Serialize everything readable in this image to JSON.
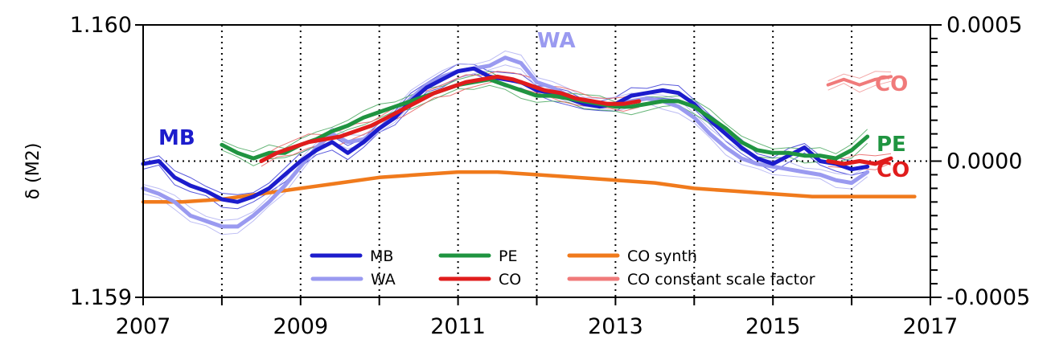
{
  "chart_data": {
    "type": "line",
    "ylabel": "δ (M2)",
    "xlim": [
      2007,
      2017
    ],
    "ylim": [
      1.159,
      1.16
    ],
    "y2lim": [
      -0.0005,
      0.0005
    ],
    "x_ticks": [
      "2007",
      "2009",
      "2011",
      "2013",
      "2015",
      "2017"
    ],
    "y_ticks": [
      "1.160",
      "1.159"
    ],
    "y2_ticks": [
      "0.0005",
      "0.0000",
      "-0.0005"
    ],
    "grid": "dotted vertical lines at each year, dotted horizontal line at 0.0000",
    "legend_position": "bottom-center",
    "legend": [
      "MB",
      "WA",
      "PE",
      "CO",
      "CO synth",
      "CO constant scale factor"
    ],
    "series": [
      {
        "name": "MB",
        "color": "#1c1ccc",
        "axis": "left",
        "points": [
          [
            2007.0,
            1.15949
          ],
          [
            2007.2,
            1.1595
          ],
          [
            2007.4,
            1.15944
          ],
          [
            2007.6,
            1.15941
          ],
          [
            2007.8,
            1.15939
          ],
          [
            2008.0,
            1.15936
          ],
          [
            2008.2,
            1.15935
          ],
          [
            2008.4,
            1.15937
          ],
          [
            2008.6,
            1.1594
          ],
          [
            2008.8,
            1.15945
          ],
          [
            2009.0,
            1.1595
          ],
          [
            2009.2,
            1.15954
          ],
          [
            2009.4,
            1.15957
          ],
          [
            2009.6,
            1.15953
          ],
          [
            2009.8,
            1.15957
          ],
          [
            2010.0,
            1.15962
          ],
          [
            2010.2,
            1.15966
          ],
          [
            2010.4,
            1.15972
          ],
          [
            2010.6,
            1.15977
          ],
          [
            2010.8,
            1.1598
          ],
          [
            2011.0,
            1.15983
          ],
          [
            2011.2,
            1.15984
          ],
          [
            2011.4,
            1.15981
          ],
          [
            2011.6,
            1.1598
          ],
          [
            2011.8,
            1.15979
          ],
          [
            2012.0,
            1.15976
          ],
          [
            2012.2,
            1.15975
          ],
          [
            2012.4,
            1.15973
          ],
          [
            2012.6,
            1.15971
          ],
          [
            2012.8,
            1.1597
          ],
          [
            2013.0,
            1.15971
          ],
          [
            2013.2,
            1.15974
          ],
          [
            2013.4,
            1.15975
          ],
          [
            2013.6,
            1.15976
          ],
          [
            2013.8,
            1.15975
          ],
          [
            2014.0,
            1.15971
          ],
          [
            2014.2,
            1.15965
          ],
          [
            2014.4,
            1.1596
          ],
          [
            2014.6,
            1.15955
          ],
          [
            2014.8,
            1.15951
          ],
          [
            2015.0,
            1.15949
          ],
          [
            2015.2,
            1.15952
          ],
          [
            2015.4,
            1.15955
          ],
          [
            2015.6,
            1.1595
          ],
          [
            2015.8,
            1.15949
          ],
          [
            2016.0,
            1.15947
          ],
          [
            2016.2,
            1.15948
          ]
        ]
      },
      {
        "name": "WA",
        "color": "#9a9af0",
        "axis": "left",
        "points": [
          [
            2007.0,
            1.1594
          ],
          [
            2007.2,
            1.15938
          ],
          [
            2007.4,
            1.15935
          ],
          [
            2007.6,
            1.1593
          ],
          [
            2007.8,
            1.15928
          ],
          [
            2008.0,
            1.15926
          ],
          [
            2008.2,
            1.15926
          ],
          [
            2008.4,
            1.1593
          ],
          [
            2008.6,
            1.15935
          ],
          [
            2008.8,
            1.15941
          ],
          [
            2009.0,
            1.15948
          ],
          [
            2009.2,
            1.15955
          ],
          [
            2009.4,
            1.1596
          ],
          [
            2009.6,
            1.15957
          ],
          [
            2009.8,
            1.15958
          ],
          [
            2010.0,
            1.15962
          ],
          [
            2010.2,
            1.15967
          ],
          [
            2010.4,
            1.15973
          ],
          [
            2010.6,
            1.15978
          ],
          [
            2010.8,
            1.15981
          ],
          [
            2011.0,
            1.15983
          ],
          [
            2011.2,
            1.15984
          ],
          [
            2011.4,
            1.15985
          ],
          [
            2011.6,
            1.15988
          ],
          [
            2011.8,
            1.15986
          ],
          [
            2012.0,
            1.15979
          ],
          [
            2012.2,
            1.15977
          ],
          [
            2012.4,
            1.15974
          ],
          [
            2012.6,
            1.15972
          ],
          [
            2012.8,
            1.15971
          ],
          [
            2013.0,
            1.15971
          ],
          [
            2013.2,
            1.15972
          ],
          [
            2013.4,
            1.15973
          ],
          [
            2013.6,
            1.15972
          ],
          [
            2013.8,
            1.1597
          ],
          [
            2014.0,
            1.15966
          ],
          [
            2014.2,
            1.1596
          ],
          [
            2014.4,
            1.15955
          ],
          [
            2014.6,
            1.15951
          ],
          [
            2014.8,
            1.15949
          ],
          [
            2015.0,
            1.15948
          ],
          [
            2015.2,
            1.15947
          ],
          [
            2015.4,
            1.15946
          ],
          [
            2015.6,
            1.15945
          ],
          [
            2015.8,
            1.15943
          ],
          [
            2016.0,
            1.15942
          ],
          [
            2016.2,
            1.15946
          ]
        ]
      },
      {
        "name": "PE",
        "color": "#1f9440",
        "axis": "left",
        "points": [
          [
            2008.0,
            1.15956
          ],
          [
            2008.2,
            1.15953
          ],
          [
            2008.4,
            1.15951
          ],
          [
            2008.6,
            1.15953
          ],
          [
            2008.8,
            1.15953
          ],
          [
            2009.0,
            1.15956
          ],
          [
            2009.2,
            1.15958
          ],
          [
            2009.4,
            1.15961
          ],
          [
            2009.6,
            1.15963
          ],
          [
            2009.8,
            1.15966
          ],
          [
            2010.0,
            1.15968
          ],
          [
            2010.2,
            1.1597
          ],
          [
            2010.4,
            1.15972
          ],
          [
            2010.6,
            1.15974
          ],
          [
            2010.8,
            1.15976
          ],
          [
            2011.0,
            1.15978
          ],
          [
            2011.2,
            1.15979
          ],
          [
            2011.4,
            1.1598
          ],
          [
            2011.6,
            1.15978
          ],
          [
            2011.8,
            1.15976
          ],
          [
            2012.0,
            1.15974
          ],
          [
            2012.2,
            1.15974
          ],
          [
            2012.4,
            1.15973
          ],
          [
            2012.6,
            1.15972
          ],
          [
            2012.8,
            1.15971
          ],
          [
            2013.0,
            1.1597
          ],
          [
            2013.2,
            1.1597
          ],
          [
            2013.4,
            1.15971
          ],
          [
            2013.6,
            1.15972
          ],
          [
            2013.8,
            1.15972
          ],
          [
            2014.0,
            1.1597
          ],
          [
            2014.2,
            1.15966
          ],
          [
            2014.4,
            1.15962
          ],
          [
            2014.6,
            1.15957
          ],
          [
            2014.8,
            1.15954
          ],
          [
            2015.0,
            1.15953
          ],
          [
            2015.2,
            1.15953
          ],
          [
            2015.4,
            1.15952
          ],
          [
            2015.6,
            1.15952
          ],
          [
            2015.8,
            1.15951
          ],
          [
            2016.0,
            1.15954
          ],
          [
            2016.2,
            1.15959
          ]
        ]
      },
      {
        "name": "CO",
        "color": "#e01c1c",
        "axis": "left",
        "points": [
          [
            2008.5,
            1.1595
          ],
          [
            2008.7,
            1.15953
          ],
          [
            2008.9,
            1.15955
          ],
          [
            2009.1,
            1.15957
          ],
          [
            2009.3,
            1.15958
          ],
          [
            2009.5,
            1.15959
          ],
          [
            2009.7,
            1.15961
          ],
          [
            2009.9,
            1.15963
          ],
          [
            2010.1,
            1.15966
          ],
          [
            2010.3,
            1.15969
          ],
          [
            2010.5,
            1.15972
          ],
          [
            2010.7,
            1.15975
          ],
          [
            2010.9,
            1.15977
          ],
          [
            2011.1,
            1.15979
          ],
          [
            2011.3,
            1.1598
          ],
          [
            2011.5,
            1.15981
          ],
          [
            2011.7,
            1.1598
          ],
          [
            2011.9,
            1.15978
          ],
          [
            2012.1,
            1.15976
          ],
          [
            2012.3,
            1.15975
          ],
          [
            2012.5,
            1.15973
          ],
          [
            2012.7,
            1.15972
          ],
          [
            2012.9,
            1.15971
          ],
          [
            2013.1,
            1.15971
          ],
          [
            2013.3,
            1.15972
          ],
          [
            2015.7,
            1.1595
          ],
          [
            2015.9,
            1.15949
          ],
          [
            2016.1,
            1.1595
          ],
          [
            2016.3,
            1.15949
          ],
          [
            2016.5,
            1.15951
          ]
        ]
      },
      {
        "name": "CO synth",
        "color": "#f07a1c",
        "axis": "left",
        "points": [
          [
            2007.0,
            1.15935
          ],
          [
            2007.5,
            1.15935
          ],
          [
            2008.0,
            1.15936
          ],
          [
            2008.5,
            1.15938
          ],
          [
            2009.0,
            1.1594
          ],
          [
            2009.5,
            1.15942
          ],
          [
            2010.0,
            1.15944
          ],
          [
            2010.5,
            1.15945
          ],
          [
            2011.0,
            1.15946
          ],
          [
            2011.5,
            1.15946
          ],
          [
            2012.0,
            1.15945
          ],
          [
            2012.5,
            1.15944
          ],
          [
            2013.0,
            1.15943
          ],
          [
            2013.5,
            1.15942
          ],
          [
            2014.0,
            1.1594
          ],
          [
            2014.5,
            1.15939
          ],
          [
            2015.0,
            1.15938
          ],
          [
            2015.5,
            1.15937
          ],
          [
            2016.0,
            1.15937
          ],
          [
            2016.5,
            1.15937
          ],
          [
            2016.8,
            1.15937
          ]
        ]
      },
      {
        "name": "CO constant scale factor",
        "color": "#f07a7a",
        "axis": "left",
        "points": [
          [
            2015.7,
            1.15978
          ],
          [
            2015.9,
            1.1598
          ],
          [
            2016.1,
            1.15978
          ],
          [
            2016.3,
            1.1598
          ],
          [
            2016.5,
            1.15981
          ]
        ]
      }
    ]
  },
  "annotations": {
    "mb": "MB",
    "wa": "WA",
    "pe": "PE",
    "co_top": "CO",
    "co_bottom": "CO"
  }
}
